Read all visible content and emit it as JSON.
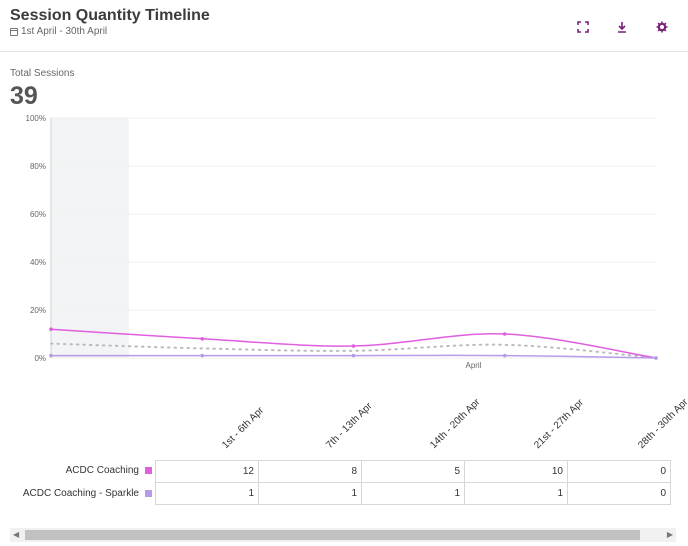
{
  "header": {
    "title": "Session Quantity Timeline",
    "date_range": "1st April - 30th April",
    "icons": [
      "expand-icon",
      "download-icon",
      "gear-icon"
    ],
    "accent": "#7a1f7a"
  },
  "kpi": {
    "label": "Total Sessions",
    "value": "39"
  },
  "chart_data": {
    "type": "line",
    "xlabel": "April",
    "ylabel": "",
    "ylim": [
      0,
      100
    ],
    "y_ticks": [
      "0%",
      "20%",
      "40%",
      "60%",
      "80%",
      "100%"
    ],
    "categories": [
      "1st - 6th Apr",
      "7th - 13th Apr",
      "14th - 20th Apr",
      "21st - 27th Apr",
      "28th - 30th Apr"
    ],
    "series": [
      {
        "name": "ACDC Coaching",
        "values": [
          12,
          8,
          5,
          10,
          0
        ],
        "color": "#e05ee0"
      },
      {
        "name": "ACDC Coaching - Sparkle",
        "values": [
          1,
          1,
          1,
          1,
          0
        ],
        "color": "#b89be8"
      }
    ],
    "trend": {
      "values": [
        6,
        4,
        3,
        5.5,
        0
      ],
      "color": "#bbbbbb"
    },
    "grid": true
  },
  "table": {
    "rows": [
      {
        "label": "ACDC Coaching",
        "values": [
          "12",
          "8",
          "5",
          "10",
          "0"
        ]
      },
      {
        "label": "ACDC Coaching - Sparkle",
        "values": [
          "1",
          "1",
          "1",
          "1",
          "0"
        ]
      }
    ]
  }
}
